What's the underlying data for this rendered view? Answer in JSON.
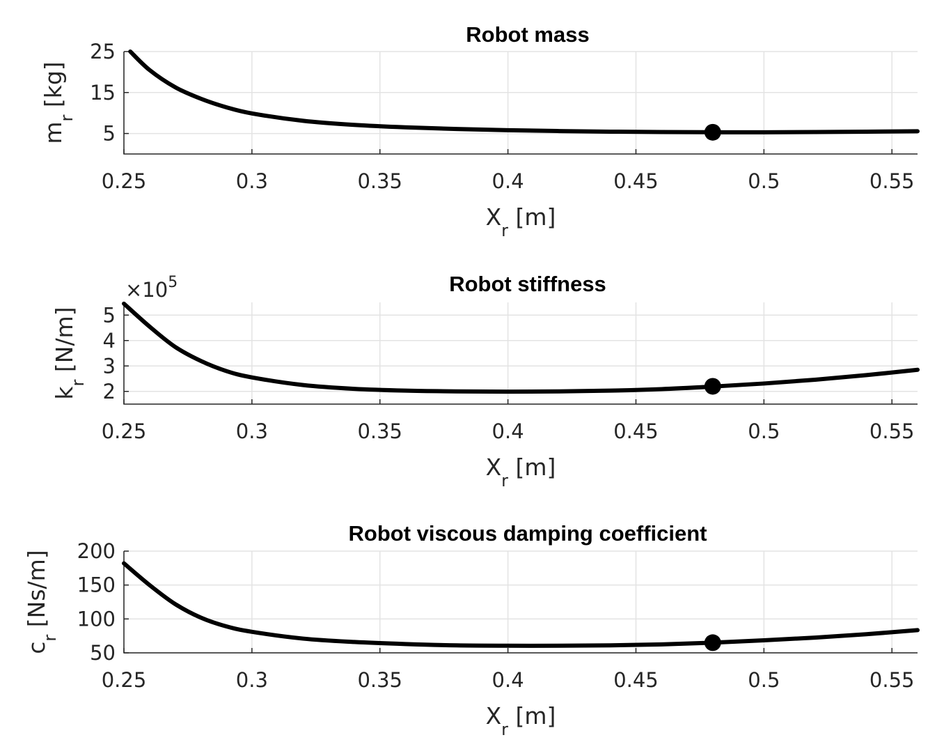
{
  "chart_data": [
    {
      "type": "line",
      "title": "Robot mass",
      "xlabel_main": "X",
      "xlabel_sub": "r",
      "xlabel_unit": " [m]",
      "ylabel_main": "m",
      "ylabel_sub": "r",
      "ylabel_unit": " [kg]",
      "xlim": [
        0.25,
        0.56
      ],
      "ylim": [
        0,
        25
      ],
      "xticks": [
        0.25,
        0.3,
        0.35,
        0.4,
        0.45,
        0.5,
        0.55
      ],
      "xtick_labels": [
        "0.25",
        "0.3",
        "0.35",
        "0.4",
        "0.45",
        "0.5",
        "0.55"
      ],
      "yticks": [
        5,
        15,
        25
      ],
      "ytick_labels": [
        "5",
        "15",
        "25"
      ],
      "exponent_label": "",
      "series": [
        {
          "name": "m_r",
          "x": [
            0.2525,
            0.26,
            0.27,
            0.28,
            0.29,
            0.3,
            0.32,
            0.34,
            0.36,
            0.38,
            0.4,
            0.42,
            0.44,
            0.46,
            0.48,
            0.5,
            0.52,
            0.54,
            0.56
          ],
          "y": [
            25.0,
            20.5,
            16.3,
            13.5,
            11.4,
            9.9,
            8.1,
            7.1,
            6.5,
            6.1,
            5.8,
            5.6,
            5.45,
            5.35,
            5.3,
            5.3,
            5.35,
            5.45,
            5.55
          ]
        }
      ],
      "marker": {
        "x": 0.48,
        "y": 5.3
      }
    },
    {
      "type": "line",
      "title": "Robot stiffness",
      "xlabel_main": "X",
      "xlabel_sub": "r",
      "xlabel_unit": " [m]",
      "ylabel_main": "k",
      "ylabel_sub": "r",
      "ylabel_unit": " [N/m]",
      "xlim": [
        0.25,
        0.56
      ],
      "ylim": [
        1.5,
        5.5
      ],
      "xticks": [
        0.25,
        0.3,
        0.35,
        0.4,
        0.45,
        0.5,
        0.55
      ],
      "xtick_labels": [
        "0.25",
        "0.3",
        "0.35",
        "0.4",
        "0.45",
        "0.5",
        "0.55"
      ],
      "yticks": [
        2,
        3,
        4,
        5
      ],
      "ytick_labels": [
        "2",
        "3",
        "4",
        "5"
      ],
      "exponent_label": "×10",
      "exponent_power": "5",
      "series": [
        {
          "name": "k_r",
          "x": [
            0.25,
            0.26,
            0.27,
            0.28,
            0.29,
            0.3,
            0.32,
            0.34,
            0.36,
            0.38,
            0.4,
            0.42,
            0.44,
            0.46,
            0.48,
            0.5,
            0.52,
            0.54,
            0.56
          ],
          "y": [
            5.45,
            4.55,
            3.75,
            3.2,
            2.8,
            2.55,
            2.25,
            2.1,
            2.03,
            2.0,
            1.99,
            2.0,
            2.03,
            2.09,
            2.19,
            2.31,
            2.46,
            2.64,
            2.85
          ]
        }
      ],
      "marker": {
        "x": 0.48,
        "y": 2.2
      }
    },
    {
      "type": "line",
      "title": "Robot viscous damping coefficient",
      "xlabel_main": "X",
      "xlabel_sub": "r",
      "xlabel_unit": " [m]",
      "ylabel_main": "c",
      "ylabel_sub": "r",
      "ylabel_unit": " [Ns/m]",
      "xlim": [
        0.25,
        0.56
      ],
      "ylim": [
        50,
        200
      ],
      "xticks": [
        0.25,
        0.3,
        0.35,
        0.4,
        0.45,
        0.5,
        0.55
      ],
      "xtick_labels": [
        "0.25",
        "0.3",
        "0.35",
        "0.4",
        "0.45",
        "0.5",
        "0.55"
      ],
      "yticks": [
        50,
        100,
        150,
        200
      ],
      "ytick_labels": [
        "50",
        "100",
        "150",
        "200"
      ],
      "exponent_label": "",
      "series": [
        {
          "name": "c_r",
          "x": [
            0.25,
            0.26,
            0.27,
            0.28,
            0.29,
            0.3,
            0.32,
            0.34,
            0.36,
            0.38,
            0.4,
            0.42,
            0.44,
            0.46,
            0.48,
            0.5,
            0.52,
            0.54,
            0.56
          ],
          "y": [
            182,
            150,
            122,
            102,
            89,
            81,
            71,
            66,
            63,
            61,
            60.5,
            60.5,
            61,
            62.5,
            65,
            68.5,
            72.5,
            77.5,
            83.5
          ]
        }
      ],
      "marker": {
        "x": 0.48,
        "y": 65
      }
    }
  ]
}
